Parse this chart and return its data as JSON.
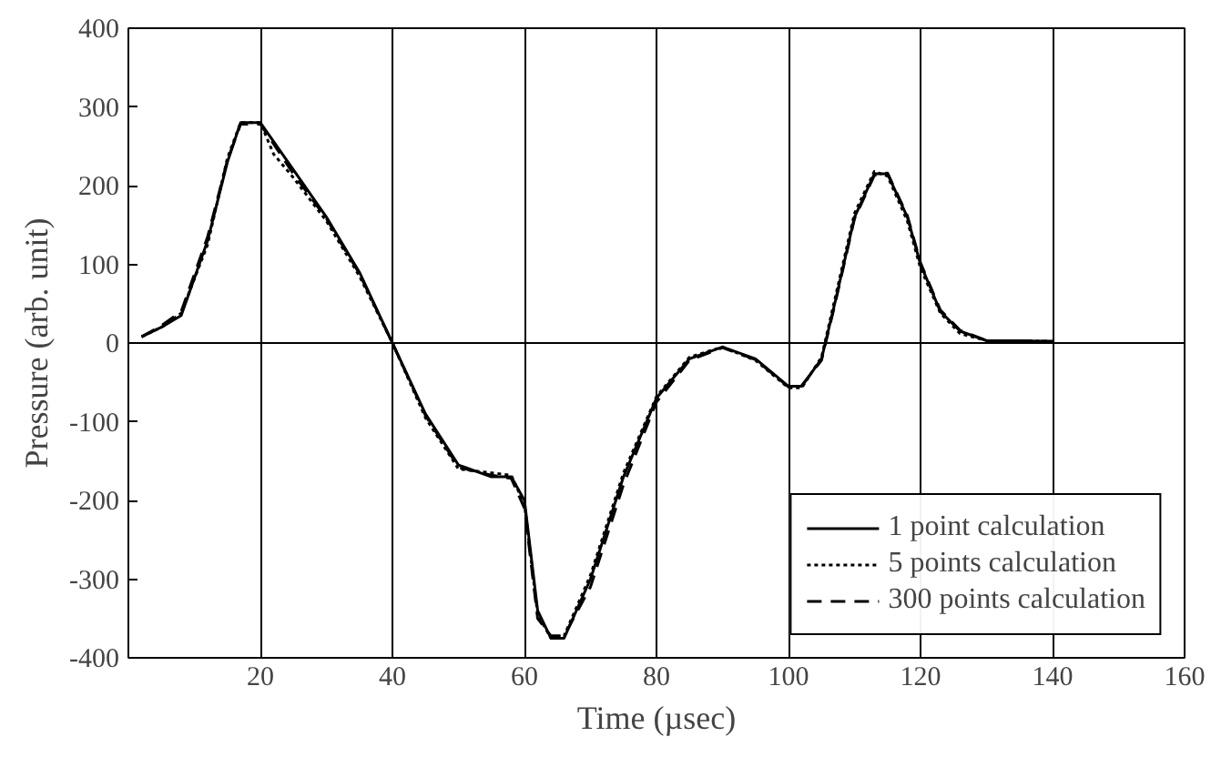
{
  "chart_data": {
    "type": "line",
    "xlabel": "Time (µsec)",
    "ylabel": "Pressure (arb. unit)",
    "xlim": [
      0,
      160
    ],
    "ylim": [
      -400,
      400
    ],
    "xticks": [
      20,
      40,
      60,
      80,
      100,
      120,
      140,
      160
    ],
    "yticks": [
      -400,
      -300,
      -200,
      -100,
      0,
      100,
      200,
      300,
      400
    ],
    "grid": "x",
    "legend": "bottom right",
    "marker": "none",
    "ref_lines": [
      {
        "axis": "y",
        "value": 0,
        "color": "#000000"
      }
    ],
    "series": [
      {
        "name": "1 point calculation",
        "color": "#000000",
        "line_style": "solid",
        "x": [
          2,
          5,
          8,
          12,
          15,
          17,
          20,
          25,
          30,
          35,
          40,
          45,
          50,
          55,
          58,
          60,
          62,
          64,
          66,
          70,
          75,
          80,
          85,
          90,
          95,
          100,
          102,
          105,
          107,
          110,
          113,
          115,
          118,
          120,
          123,
          126,
          130,
          135,
          140
        ],
        "values": [
          8,
          20,
          35,
          130,
          230,
          280,
          280,
          220,
          160,
          90,
          0,
          -90,
          -155,
          -170,
          -170,
          -200,
          -340,
          -375,
          -375,
          -300,
          -170,
          -70,
          -20,
          -5,
          -20,
          -55,
          -55,
          -20,
          50,
          160,
          215,
          215,
          160,
          100,
          40,
          15,
          3,
          3,
          2
        ]
      },
      {
        "name": "5 points calculation",
        "color": "#000000",
        "line_style": "dotted",
        "x": [
          2,
          5,
          8,
          12,
          15,
          17,
          20,
          22,
          25,
          30,
          35,
          40,
          45,
          50,
          55,
          58,
          60,
          62,
          64,
          66,
          70,
          75,
          80,
          85,
          90,
          95,
          100,
          102,
          105,
          107,
          110,
          113,
          115,
          118,
          120,
          123,
          126,
          130,
          135,
          140
        ],
        "values": [
          8,
          20,
          38,
          125,
          235,
          280,
          280,
          240,
          210,
          155,
          85,
          0,
          -95,
          -160,
          -165,
          -168,
          -205,
          -345,
          -375,
          -372,
          -295,
          -165,
          -68,
          -18,
          -5,
          -22,
          -57,
          -57,
          -18,
          55,
          165,
          218,
          212,
          155,
          95,
          38,
          12,
          3,
          3,
          2
        ]
      },
      {
        "name": "300 points calculation",
        "color": "#000000",
        "line_style": "dashed",
        "x": [
          2,
          5,
          8,
          12,
          15,
          17,
          20,
          25,
          30,
          35,
          40,
          45,
          50,
          55,
          58,
          60,
          62,
          64,
          66,
          70,
          75,
          80,
          85,
          90,
          95,
          100,
          102,
          105,
          107,
          110,
          113,
          115,
          118,
          120,
          123,
          126,
          130,
          135,
          140
        ],
        "values": [
          8,
          22,
          40,
          135,
          232,
          278,
          278,
          215,
          158,
          88,
          0,
          -92,
          -158,
          -168,
          -172,
          -210,
          -350,
          -372,
          -372,
          -310,
          -180,
          -75,
          -22,
          -6,
          -21,
          -56,
          -54,
          -22,
          48,
          158,
          213,
          216,
          162,
          102,
          42,
          16,
          3,
          3,
          2
        ]
      }
    ]
  }
}
